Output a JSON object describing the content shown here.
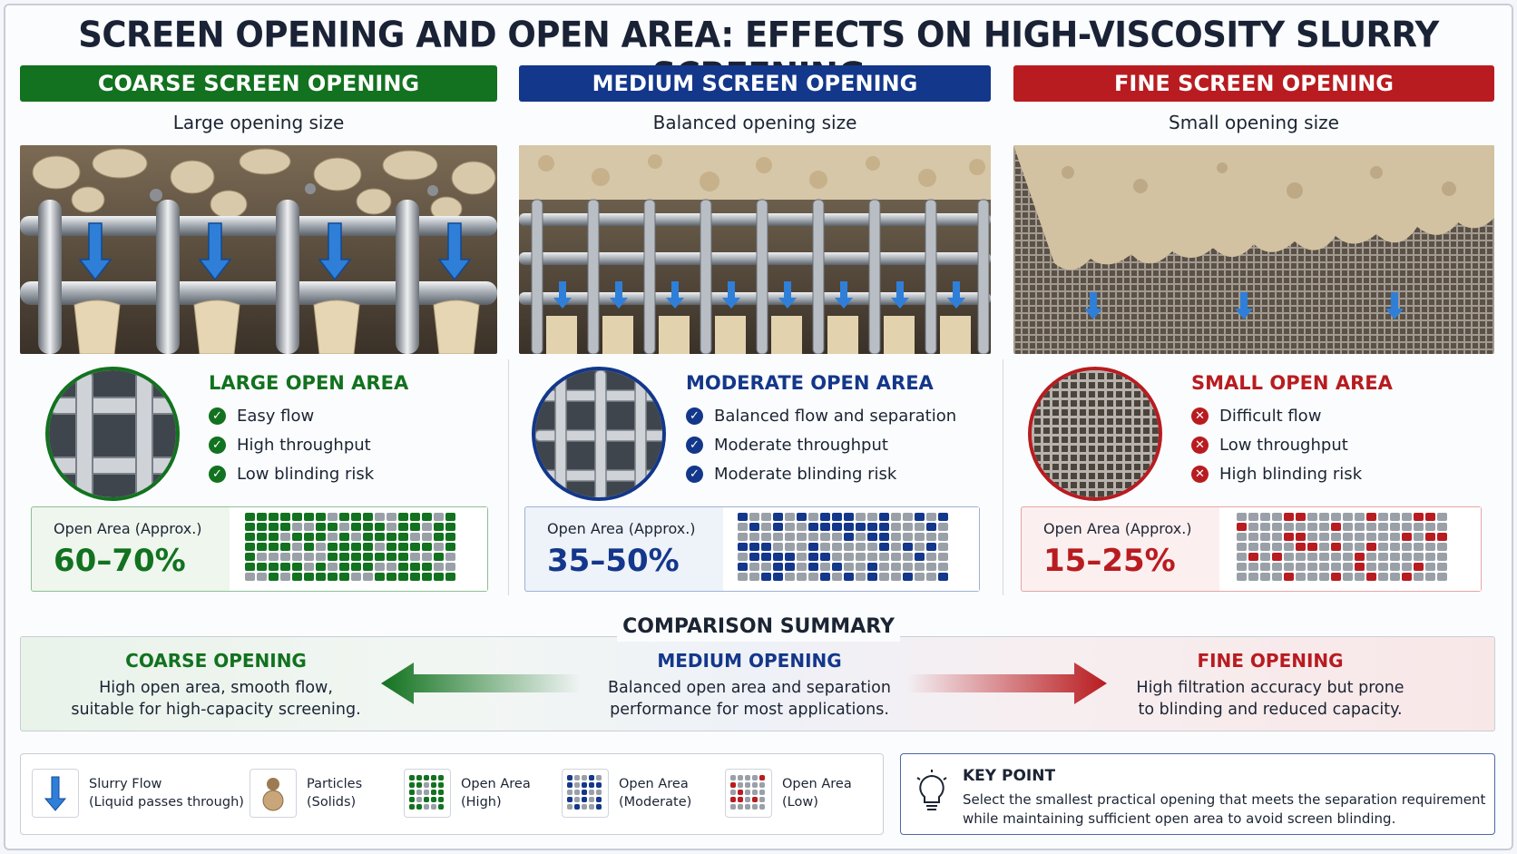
{
  "title": "SCREEN OPENING AND OPEN AREA: EFFECTS ON HIGH-VISCOSITY SLURRY SCREENING",
  "columns": [
    {
      "banner": "COARSE SCREEN OPENING",
      "subtitle": "Large opening size",
      "feature_title": "LARGE OPEN AREA",
      "features": [
        "Easy flow",
        "High throughput",
        "Low blinding risk"
      ],
      "feature_icon": "check-circle-icon",
      "open_area_label": "Open Area (Approx.)",
      "open_area_value": "60–70%",
      "open_area_fraction_range": [
        0.6,
        0.7
      ],
      "accent": "#12721f"
    },
    {
      "banner": "MEDIUM SCREEN OPENING",
      "subtitle": "Balanced opening size",
      "feature_title": "MODERATE OPEN AREA",
      "features": [
        "Balanced flow and separation",
        "Moderate throughput",
        "Moderate blinding risk"
      ],
      "feature_icon": "check-circle-icon",
      "open_area_label": "Open Area (Approx.)",
      "open_area_value": "35–50%",
      "open_area_fraction_range": [
        0.35,
        0.5
      ],
      "accent": "#13378a"
    },
    {
      "banner": "FINE SCREEN OPENING",
      "subtitle": "Small opening size",
      "feature_title": "SMALL OPEN AREA",
      "features": [
        "Difficult flow",
        "Low throughput",
        "High blinding risk"
      ],
      "feature_icon": "x-circle-icon",
      "open_area_label": "Open Area (Approx.)",
      "open_area_value": "15–25%",
      "open_area_fraction_range": [
        0.15,
        0.25
      ],
      "accent": "#b81c20"
    }
  ],
  "summary": {
    "title": "COMPARISON SUMMARY",
    "coarse": {
      "heading": "COARSE OPENING",
      "line1": "High open area, smooth flow,",
      "line2": "suitable for high-capacity screening."
    },
    "medium": {
      "heading": "MEDIUM OPENING",
      "line1": "Balanced open area and separation",
      "line2": "performance for most applications."
    },
    "fine": {
      "heading": "FINE OPENING",
      "line1": "High filtration accuracy but prone",
      "line2": "to blinding and reduced capacity."
    }
  },
  "legend": [
    {
      "icon": "down-arrow-icon",
      "line1": "Slurry Flow",
      "line2": "(Liquid passes through)"
    },
    {
      "icon": "particles-icon",
      "line1": "Particles",
      "line2": "(Solids)"
    },
    {
      "icon": "grid-high-icon",
      "line1": "Open Area",
      "line2": "(High)"
    },
    {
      "icon": "grid-moderate-icon",
      "line1": "Open Area",
      "line2": "(Moderate)"
    },
    {
      "icon": "grid-low-icon",
      "line1": "Open Area",
      "line2": "(Low)"
    }
  ],
  "key_point": {
    "title": "KEY POINT",
    "line1": "Select the smallest practical opening that meets the separation requirement",
    "line2": "while maintaining sufficient open area to avoid screen blinding.",
    "icon": "lightbulb-icon"
  }
}
